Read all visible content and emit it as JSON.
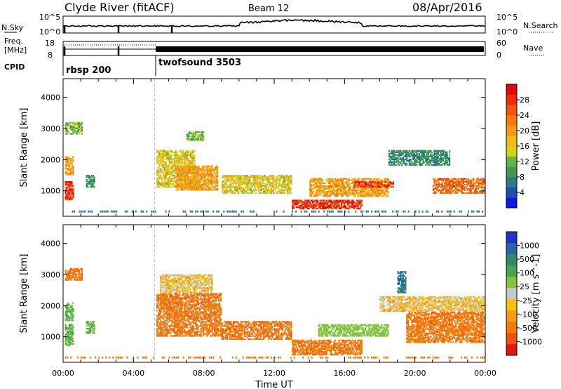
{
  "header": {
    "station": "Clyde River (fitACF)",
    "beam": "Beam 12",
    "date": "08/Apr/2016"
  },
  "noise_panel": {
    "left_label": "N.Sky",
    "right_label": "N.Search",
    "left_ticks": [
      "10^5",
      "10^0"
    ],
    "right_ticks": [
      "10^5",
      "10^0"
    ]
  },
  "freq_panel": {
    "left_label_1": "Freq.",
    "left_label_2": "[MHz]",
    "right_label": "Nave",
    "left_ticks": [
      "18",
      "8"
    ],
    "right_ticks": [
      "60",
      "0"
    ]
  },
  "cpid": {
    "label": "CPID",
    "segments": [
      {
        "name": "rbsp 200",
        "start_h": 0
      },
      {
        "name": "twofsound 3503",
        "start_h": 5.2
      }
    ]
  },
  "time_axis": {
    "label": "Time UT",
    "ticks": [
      "00:00",
      "04:00",
      "08:00",
      "12:00",
      "16:00",
      "20:00",
      "00:00"
    ],
    "range_h": [
      0,
      24
    ]
  },
  "range_axis": {
    "label": "Slant Range [km]",
    "ticks": [
      "1000",
      "2000",
      "3000",
      "4000"
    ],
    "range_km": [
      180,
      4600
    ]
  },
  "power_scale": {
    "label": "Power [dB]",
    "ticks": [
      "4",
      "8",
      "12",
      "16",
      "20",
      "24",
      "28"
    ],
    "colors": [
      "#0b18e6",
      "#1f4fb4",
      "#2e7c83",
      "#3e9a54",
      "#62b743",
      "#d3d317",
      "#eebc10",
      "#f59a11",
      "#f57a0c",
      "#f2560b",
      "#ee2b0b",
      "#e10808"
    ]
  },
  "velocity_scale": {
    "label": "Velocity [m s^-1]",
    "ticks": [
      "1000",
      "500",
      "100",
      "25",
      "-25",
      "-100",
      "-500",
      "-1000"
    ],
    "colors": [
      "#1f33c8",
      "#2a66a6",
      "#2f8a6e",
      "#4aa34e",
      "#7fc63a",
      "#c8c8c8",
      "#f6c20f",
      "#f59a11",
      "#f57a0c",
      "#f0500b",
      "#e01a0a"
    ]
  },
  "chart_data": [
    {
      "type": "heatmap",
      "title": "Power",
      "xlabel": "Time UT",
      "ylabel": "Slant Range [km]",
      "xlim_h": [
        0,
        24
      ],
      "ylim_km": [
        180,
        4600
      ],
      "clim_db": [
        0,
        32
      ],
      "regions": [
        {
          "t": [
            0.1,
            0.6
          ],
          "r": [
            700,
            1300
          ],
          "value": 28
        },
        {
          "t": [
            0.1,
            0.6
          ],
          "r": [
            1500,
            2100
          ],
          "value": 20
        },
        {
          "t": [
            0.1,
            1.1
          ],
          "r": [
            2800,
            3200
          ],
          "value": 12
        },
        {
          "t": [
            1.3,
            1.8
          ],
          "r": [
            1100,
            1500
          ],
          "value": 8
        },
        {
          "t": [
            5.3,
            7.5
          ],
          "r": [
            1100,
            2300
          ],
          "value": 16
        },
        {
          "t": [
            6.4,
            8.8
          ],
          "r": [
            1000,
            1800
          ],
          "value": 20
        },
        {
          "t": [
            7.0,
            8.0
          ],
          "r": [
            2600,
            2900
          ],
          "value": 12
        },
        {
          "t": [
            9.0,
            13.0
          ],
          "r": [
            900,
            1500
          ],
          "value": 16
        },
        {
          "t": [
            13.0,
            17.0
          ],
          "r": [
            400,
            700
          ],
          "value": 28
        },
        {
          "t": [
            14.0,
            18.5
          ],
          "r": [
            800,
            1400
          ],
          "value": 20
        },
        {
          "t": [
            16.5,
            18.8
          ],
          "r": [
            1100,
            1300
          ],
          "value": 28
        },
        {
          "t": [
            18.5,
            22.0
          ],
          "r": [
            1800,
            2300
          ],
          "value": 8
        },
        {
          "t": [
            21.0,
            24.0
          ],
          "r": [
            900,
            1400
          ],
          "value": 24
        }
      ]
    },
    {
      "type": "heatmap",
      "title": "Velocity",
      "xlabel": "Time UT",
      "ylabel": "Slant Range [km]",
      "xlim_h": [
        0,
        24
      ],
      "ylim_km": [
        180,
        4600
      ],
      "clim_ms": [
        -1000,
        1000
      ],
      "regions": [
        {
          "t": [
            0.1,
            0.6
          ],
          "r": [
            700,
            1400
          ],
          "value": 300
        },
        {
          "t": [
            0.1,
            0.6
          ],
          "r": [
            1500,
            2100
          ],
          "value": 300
        },
        {
          "t": [
            0.1,
            1.1
          ],
          "r": [
            2800,
            3200
          ],
          "value": -250
        },
        {
          "t": [
            1.3,
            1.8
          ],
          "r": [
            1100,
            1500
          ],
          "value": 300
        },
        {
          "t": [
            5.3,
            9.0
          ],
          "r": [
            1000,
            2400
          ],
          "value": -250
        },
        {
          "t": [
            5.5,
            8.5
          ],
          "r": [
            2400,
            3000
          ],
          "value": 0
        },
        {
          "t": [
            9.0,
            13.0
          ],
          "r": [
            900,
            1500
          ],
          "value": -250
        },
        {
          "t": [
            13.0,
            17.0
          ],
          "r": [
            400,
            900
          ],
          "value": -250
        },
        {
          "t": [
            14.5,
            18.5
          ],
          "r": [
            1000,
            1400
          ],
          "value": 200
        },
        {
          "t": [
            18.0,
            24.0
          ],
          "r": [
            1800,
            2300
          ],
          "value": 0
        },
        {
          "t": [
            19.0,
            19.5
          ],
          "r": [
            2400,
            3100
          ],
          "value": 700
        },
        {
          "t": [
            19.5,
            24.0
          ],
          "r": [
            800,
            1800
          ],
          "value": -250
        }
      ]
    }
  ]
}
